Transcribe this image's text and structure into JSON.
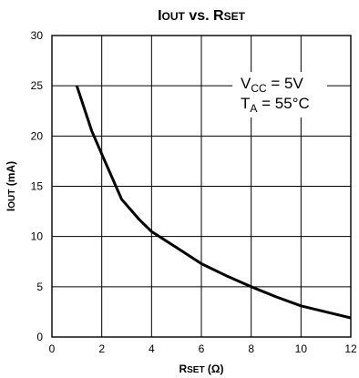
{
  "chart_data": {
    "type": "line",
    "title": "IOUT vs. RSET",
    "xlabel": "RSET (Ω)",
    "ylabel": "IOUT (mA)",
    "xlim": [
      0,
      12
    ],
    "ylim": [
      0,
      30
    ],
    "xticks": [
      "0",
      "2",
      "4",
      "6",
      "8",
      "10",
      "12"
    ],
    "yticks": [
      "0",
      "5",
      "10",
      "15",
      "20",
      "25",
      "30"
    ],
    "grid": true,
    "series": [
      {
        "x": [
          1.0,
          1.6,
          2.0,
          2.8,
          3.5,
          4.0,
          5.0,
          6.0,
          7.0,
          8.0,
          9.0,
          10.0,
          11.0,
          12.0
        ],
        "y": [
          25.0,
          20.5,
          18.2,
          13.7,
          11.7,
          10.5,
          8.9,
          7.3,
          6.1,
          5.0,
          4.0,
          3.1,
          2.5,
          1.9
        ]
      }
    ],
    "annotations": {
      "vcc_label": "VCC = 5V",
      "ta_label": "TA = 55°C"
    }
  }
}
